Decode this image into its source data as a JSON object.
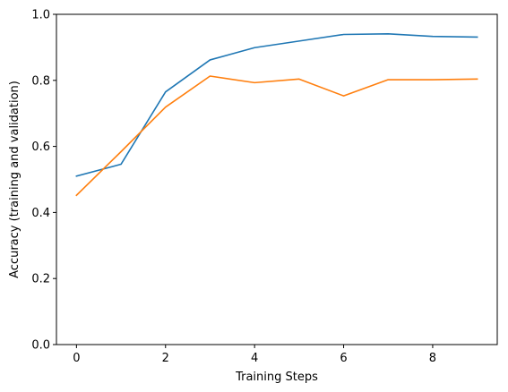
{
  "chart_data": {
    "type": "line",
    "title": "",
    "xlabel": "Training Steps",
    "ylabel": "Accuracy (training and validation)",
    "x": [
      0,
      1,
      2,
      3,
      4,
      5,
      6,
      7,
      8,
      9
    ],
    "series": [
      {
        "color": "#1f77b4",
        "values": [
          0.51,
          0.546,
          0.765,
          0.862,
          0.899,
          0.919,
          0.939,
          0.941,
          0.933,
          0.931
        ]
      },
      {
        "color": "#ff7f0e",
        "values": [
          0.452,
          0.584,
          0.719,
          0.813,
          0.793,
          0.804,
          0.753,
          0.802,
          0.802,
          0.804
        ]
      }
    ],
    "xlim": [
      -0.45,
      9.45
    ],
    "ylim": [
      0.0,
      1.0
    ],
    "xticks": [
      "0",
      "2",
      "4",
      "6",
      "8"
    ],
    "yticks": [
      "0.0",
      "0.2",
      "0.4",
      "0.6",
      "0.8",
      "1.0"
    ],
    "grid": false,
    "legend": "none"
  }
}
